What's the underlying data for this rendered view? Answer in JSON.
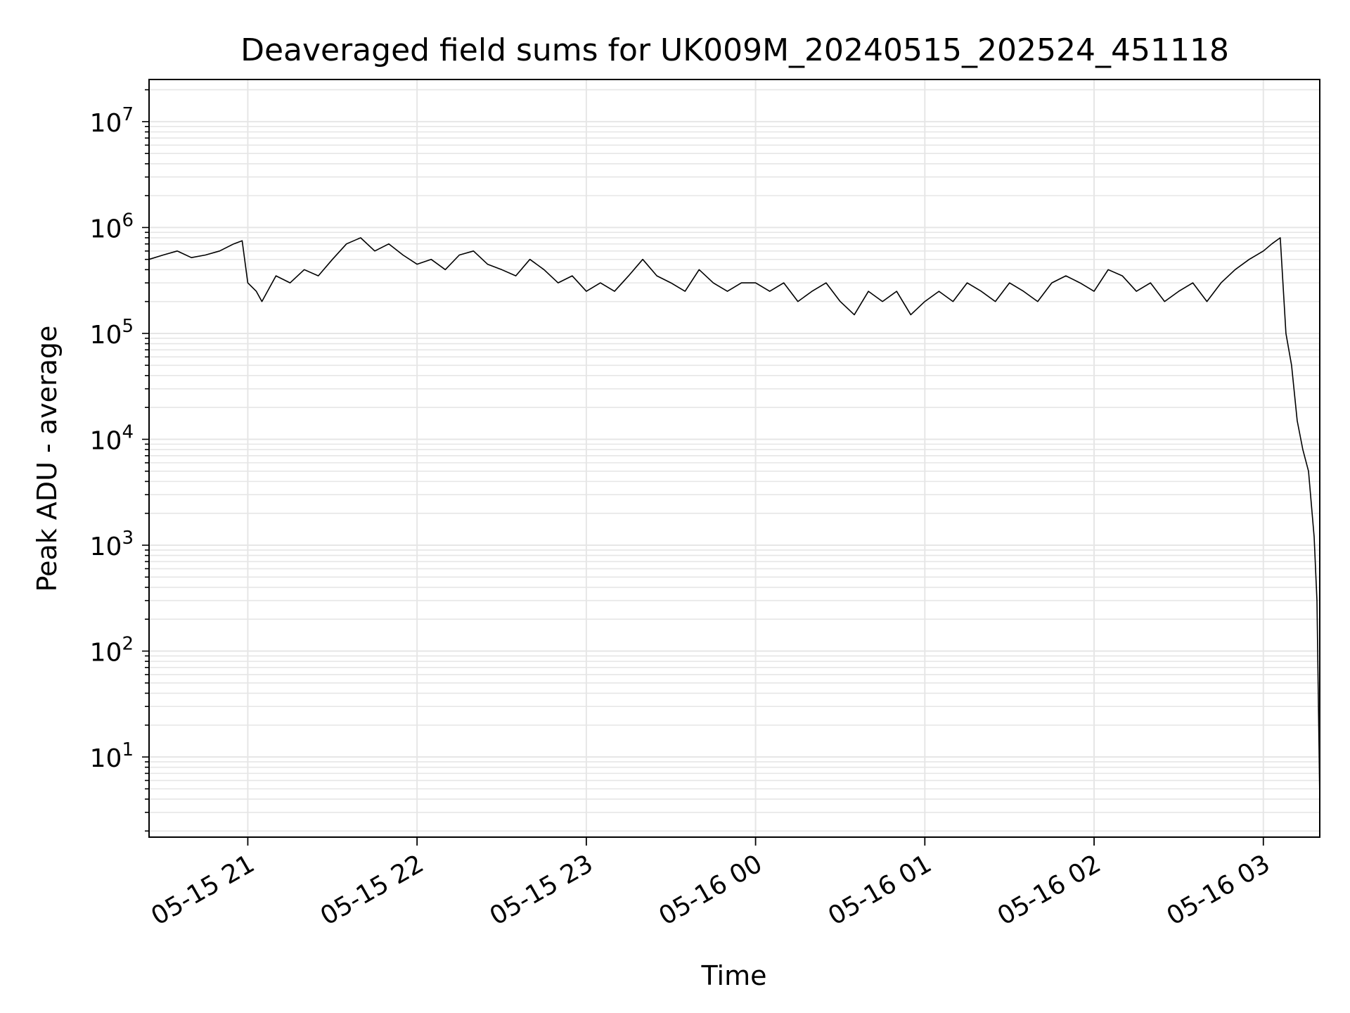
{
  "chart_data": {
    "type": "line",
    "title": "Deaveraged field sums for UK009M_20240515_202524_451118",
    "xlabel": "Time",
    "ylabel": "Peak ADU - average",
    "yscale": "log",
    "grid": true,
    "legend": "none",
    "line_color": "#000000",
    "grid_color": "#e6e6e6",
    "xlim": [
      "2024-05-15 20:25",
      "2024-05-16 03:20"
    ],
    "ylim": [
      1.75,
      25000000
    ],
    "x_ticks": [
      {
        "value": "2024-05-15 21:00",
        "label": "05-15 21"
      },
      {
        "value": "2024-05-15 22:00",
        "label": "05-15 22"
      },
      {
        "value": "2024-05-15 23:00",
        "label": "05-15 23"
      },
      {
        "value": "2024-05-16 00:00",
        "label": "05-16 00"
      },
      {
        "value": "2024-05-16 01:00",
        "label": "05-16 01"
      },
      {
        "value": "2024-05-16 02:00",
        "label": "05-16 02"
      },
      {
        "value": "2024-05-16 03:00",
        "label": "05-16 03"
      }
    ],
    "y_ticks": [
      {
        "value": 10,
        "base": "10",
        "exp": "1"
      },
      {
        "value": 100,
        "base": "10",
        "exp": "2"
      },
      {
        "value": 1000,
        "base": "10",
        "exp": "3"
      },
      {
        "value": 10000,
        "base": "10",
        "exp": "4"
      },
      {
        "value": 100000,
        "base": "10",
        "exp": "5"
      },
      {
        "value": 1000000,
        "base": "10",
        "exp": "6"
      },
      {
        "value": 10000000,
        "base": "10",
        "exp": "7"
      }
    ],
    "series": [
      {
        "x": [
          "2024-05-15 20:25",
          "2024-05-15 20:30",
          "2024-05-15 20:35",
          "2024-05-15 20:40",
          "2024-05-15 20:45",
          "2024-05-15 20:50",
          "2024-05-15 20:55",
          "2024-05-15 20:58",
          "2024-05-15 21:00",
          "2024-05-15 21:03",
          "2024-05-15 21:05",
          "2024-05-15 21:10",
          "2024-05-15 21:15",
          "2024-05-15 21:20",
          "2024-05-15 21:25",
          "2024-05-15 21:30",
          "2024-05-15 21:35",
          "2024-05-15 21:40",
          "2024-05-15 21:45",
          "2024-05-15 21:50",
          "2024-05-15 21:55",
          "2024-05-15 22:00",
          "2024-05-15 22:05",
          "2024-05-15 22:10",
          "2024-05-15 22:15",
          "2024-05-15 22:20",
          "2024-05-15 22:25",
          "2024-05-15 22:30",
          "2024-05-15 22:35",
          "2024-05-15 22:40",
          "2024-05-15 22:45",
          "2024-05-15 22:50",
          "2024-05-15 22:55",
          "2024-05-15 23:00",
          "2024-05-15 23:05",
          "2024-05-15 23:10",
          "2024-05-15 23:15",
          "2024-05-15 23:20",
          "2024-05-15 23:25",
          "2024-05-15 23:30",
          "2024-05-15 23:35",
          "2024-05-15 23:40",
          "2024-05-15 23:45",
          "2024-05-15 23:50",
          "2024-05-15 23:55",
          "2024-05-16 00:00",
          "2024-05-16 00:05",
          "2024-05-16 00:10",
          "2024-05-16 00:15",
          "2024-05-16 00:20",
          "2024-05-16 00:25",
          "2024-05-16 00:30",
          "2024-05-16 00:35",
          "2024-05-16 00:40",
          "2024-05-16 00:45",
          "2024-05-16 00:50",
          "2024-05-16 00:55",
          "2024-05-16 01:00",
          "2024-05-16 01:05",
          "2024-05-16 01:10",
          "2024-05-16 01:15",
          "2024-05-16 01:20",
          "2024-05-16 01:25",
          "2024-05-16 01:30",
          "2024-05-16 01:35",
          "2024-05-16 01:40",
          "2024-05-16 01:45",
          "2024-05-16 01:50",
          "2024-05-16 01:55",
          "2024-05-16 02:00",
          "2024-05-16 02:05",
          "2024-05-16 02:10",
          "2024-05-16 02:15",
          "2024-05-16 02:20",
          "2024-05-16 02:25",
          "2024-05-16 02:30",
          "2024-05-16 02:35",
          "2024-05-16 02:40",
          "2024-05-16 02:45",
          "2024-05-16 02:50",
          "2024-05-16 02:55",
          "2024-05-16 03:00",
          "2024-05-16 03:03",
          "2024-05-16 03:06",
          "2024-05-16 03:08",
          "2024-05-16 03:10",
          "2024-05-16 03:12",
          "2024-05-16 03:14",
          "2024-05-16 03:16",
          "2024-05-16 03:18",
          "2024-05-16 03:19",
          "2024-05-16 03:20"
        ],
        "y": [
          500000,
          550000,
          600000,
          520000,
          550000,
          600000,
          700000,
          750000,
          300000,
          250000,
          200000,
          350000,
          300000,
          400000,
          350000,
          500000,
          700000,
          800000,
          600000,
          700000,
          550000,
          450000,
          500000,
          400000,
          550000,
          600000,
          450000,
          400000,
          350000,
          500000,
          400000,
          300000,
          350000,
          250000,
          300000,
          250000,
          350000,
          500000,
          350000,
          300000,
          250000,
          400000,
          300000,
          250000,
          300000,
          300000,
          250000,
          300000,
          200000,
          250000,
          300000,
          200000,
          150000,
          250000,
          200000,
          250000,
          150000,
          200000,
          250000,
          200000,
          300000,
          250000,
          200000,
          300000,
          250000,
          200000,
          300000,
          350000,
          300000,
          250000,
          400000,
          350000,
          250000,
          300000,
          200000,
          250000,
          300000,
          200000,
          300000,
          400000,
          500000,
          600000,
          700000,
          800000,
          100000,
          50000,
          15000,
          8000,
          5000,
          1200,
          300,
          4
        ]
      }
    ]
  }
}
